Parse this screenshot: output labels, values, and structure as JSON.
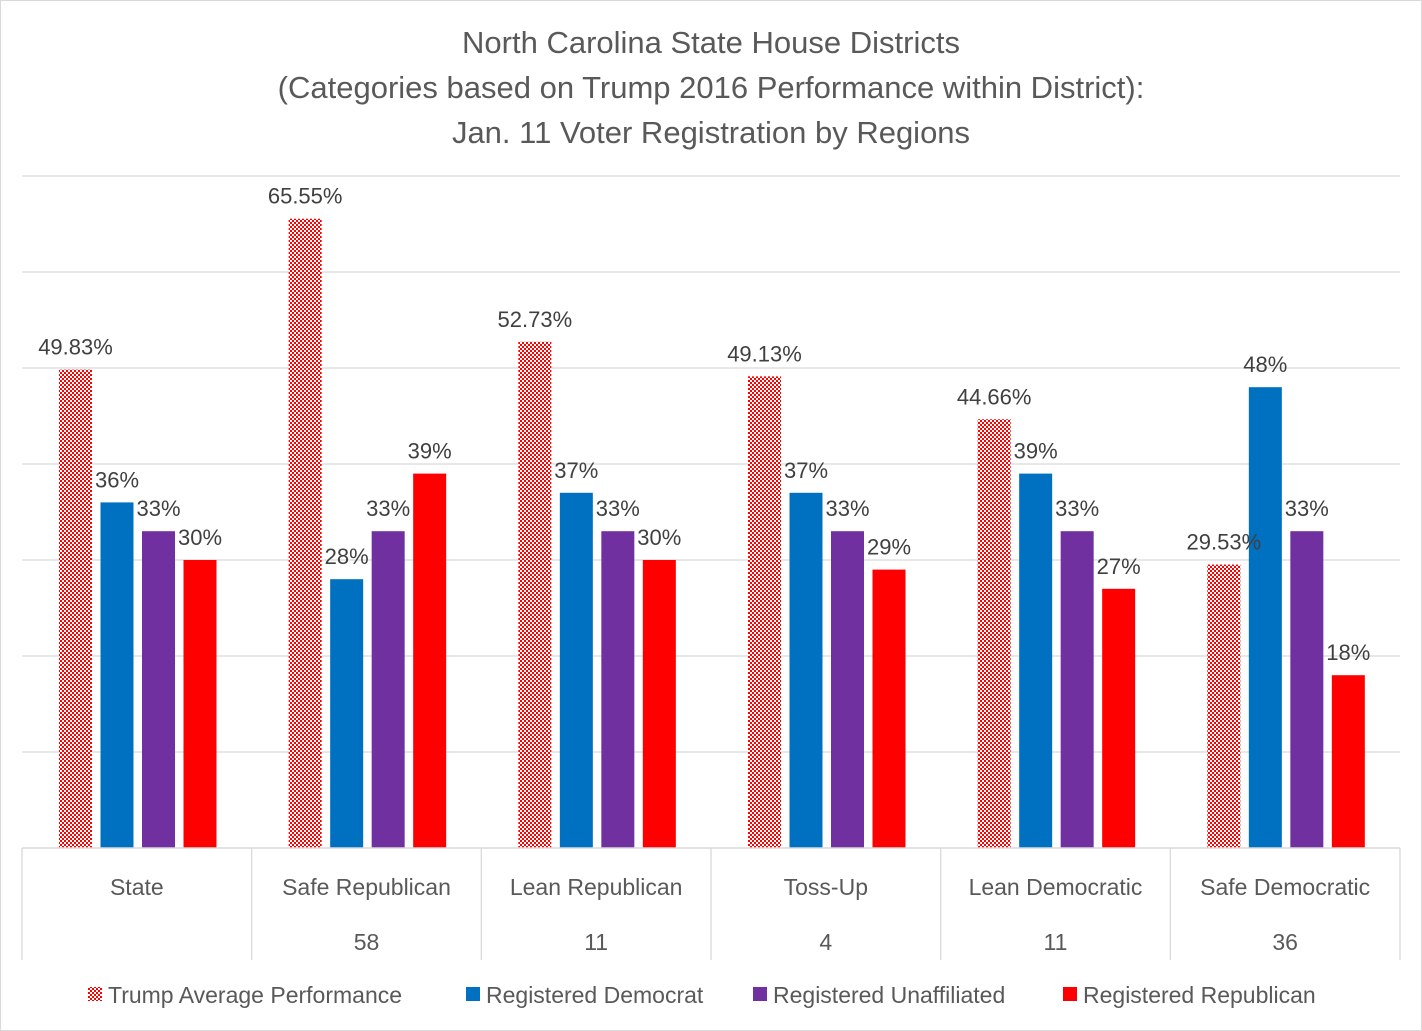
{
  "chart_data": {
    "type": "bar",
    "title_lines": [
      "North Carolina State House Districts",
      "(Categories based on Trump 2016 Performance within District):",
      "Jan. 11 Voter Registration by Regions"
    ],
    "categories": [
      "State",
      "Safe Republican",
      "Lean Republican",
      "Toss-Up",
      "Lean Democratic",
      "Safe Democratic"
    ],
    "category_counts": [
      "",
      "58",
      "11",
      "4",
      "11",
      "36"
    ],
    "ylim": [
      0,
      70
    ],
    "grid": true,
    "legend_position": "bottom",
    "series": [
      {
        "name": "Trump Average Performance",
        "color": "#ff0000",
        "pattern": "dotted",
        "values": [
          49.83,
          65.55,
          52.73,
          49.13,
          44.66,
          29.53
        ],
        "labels": [
          "49.83%",
          "65.55%",
          "52.73%",
          "49.13%",
          "44.66%",
          "29.53%"
        ]
      },
      {
        "name": "Registered Democrat",
        "color": "#0070c0",
        "values": [
          36,
          28,
          37,
          37,
          39,
          48
        ],
        "labels": [
          "36%",
          "28%",
          "37%",
          "37%",
          "39%",
          "48%"
        ]
      },
      {
        "name": "Registered Unaffiliated",
        "color": "#7030a0",
        "values": [
          33,
          33,
          33,
          33,
          33,
          33
        ],
        "labels": [
          "33%",
          "33%",
          "33%",
          "33%",
          "33%",
          "33%"
        ]
      },
      {
        "name": "Registered Republican",
        "color": "#ff0000",
        "values": [
          30,
          39,
          30,
          29,
          27,
          18
        ],
        "labels": [
          "30%",
          "39%",
          "30%",
          "29%",
          "27%",
          "18%"
        ]
      }
    ]
  }
}
